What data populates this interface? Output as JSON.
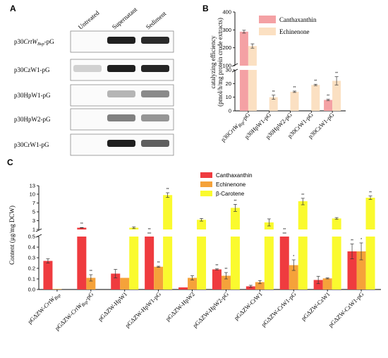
{
  "panel_a": {
    "letter": "A",
    "columns": [
      "Untreated",
      "Supernatant",
      "Sediment"
    ],
    "rows": [
      {
        "label": "p30CrtW_Bsp-pG",
        "bands": [
          0.0,
          0.95,
          0.9
        ]
      },
      {
        "label": "p30CzW1-pG",
        "bands": [
          0.12,
          0.95,
          0.92
        ]
      },
      {
        "label": "p30HpW1-pG",
        "bands": [
          0.0,
          0.25,
          0.45
        ]
      },
      {
        "label": "p30HpW2-pG",
        "bands": [
          0.0,
          0.5,
          0.4
        ]
      },
      {
        "label": "p30CrW1-pG",
        "bands": [
          0.0,
          0.95,
          0.65
        ]
      }
    ]
  },
  "panel_b_letter": "B",
  "panel_c_letter": "C",
  "chart_data": [
    {
      "type": "bar",
      "ylabel": "catalyzing efficiency\n(pmol/h/mg protein crude extracts)",
      "categories": [
        "p30CrtW_Bsp-pG",
        "p30HpW1-pG",
        "p30HpW2-pG",
        "p30CrW1-pG",
        "p30CzW1-pG"
      ],
      "series": [
        {
          "name": "Canthaxanthin",
          "color": "#f4a1a4",
          "values": [
            290,
            0,
            0,
            0,
            8
          ],
          "errors": [
            8,
            0,
            0,
            0,
            0.5
          ],
          "sig": [
            "",
            "",
            "",
            "",
            "**"
          ]
        },
        {
          "name": "Echinenone",
          "color": "#fbe0c2",
          "values": [
            210,
            10,
            14,
            19,
            22
          ],
          "errors": [
            12,
            1.5,
            0.5,
            0.5,
            3
          ],
          "sig": [
            "",
            "**",
            "**",
            "**",
            "**"
          ]
        }
      ],
      "axis_broken": true,
      "y_lower_range": [
        0,
        30
      ],
      "y_lower_ticks": [
        "0",
        "10",
        "20",
        "30"
      ],
      "y_upper_range": [
        100,
        400
      ],
      "y_upper_ticks": [
        "100",
        "200",
        "300",
        "400"
      ]
    },
    {
      "type": "bar",
      "ylabel": "Content (µg/mg DCW)",
      "categories": [
        "pGΔZW-CrtW_Bsp",
        "pGΔZW-CrtW_Bsp-pG",
        "pGΔZW-HpW1",
        "pGΔZW-HpW1-pG",
        "pGΔZW-HpW2",
        "pGΔZW-HpW2-pG",
        "pGΔZW-CrW1",
        "pGΔZW-CrW1-pG",
        "pGΔZW-CzW1",
        "pGΔZW-CzW1-pG"
      ],
      "series": [
        {
          "name": "Canthaxanthin",
          "color": "#ef3b3f",
          "values": [
            0.27,
            1.4,
            0.15,
            0.54,
            0.02,
            0.19,
            0.03,
            0.9,
            0.09,
            0.36
          ],
          "errors": [
            0.02,
            0.05,
            0.04,
            0.005,
            0.0,
            0.005,
            0.01,
            0.05,
            0.035,
            0.07
          ],
          "sig": [
            "",
            "**",
            "",
            "**",
            "",
            "**",
            "",
            "**",
            "",
            "**"
          ]
        },
        {
          "name": "Echinenone",
          "color": "#f5a23a",
          "values": [
            0.005,
            0.11,
            0.11,
            0.215,
            0.11,
            0.13,
            0.07,
            0.23,
            0.105,
            0.36
          ],
          "errors": [
            0.0,
            0.03,
            0.0,
            0.005,
            0.02,
            0.03,
            0.015,
            0.05,
            0.005,
            0.08
          ],
          "sig": [
            "",
            "**",
            "",
            "**",
            "",
            "**",
            "",
            "*",
            "",
            "*"
          ]
        },
        {
          "name": "β-Carotene",
          "color": "#fafa2e",
          "values": [
            null,
            null,
            1.4,
            9.7,
            3.2,
            5.9,
            2.6,
            7.6,
            3.5,
            8.8
          ],
          "errors": [
            0,
            0,
            0.2,
            0.8,
            0.3,
            0.8,
            0.8,
            1.0,
            0.2,
            0.6
          ],
          "sig": [
            "",
            "",
            "",
            "**",
            "",
            "**",
            "",
            "**",
            "",
            "**"
          ]
        }
      ],
      "axis_broken": true,
      "y_lower_range": [
        0,
        0.5
      ],
      "y_lower_ticks": [
        "0.0",
        "0.1",
        "0.2",
        "0.3",
        "0.4",
        "0.5"
      ],
      "y_upper_range": [
        1,
        13
      ],
      "y_upper_ticks": [
        "1",
        "3",
        "5",
        "7",
        "10",
        "13"
      ]
    }
  ]
}
